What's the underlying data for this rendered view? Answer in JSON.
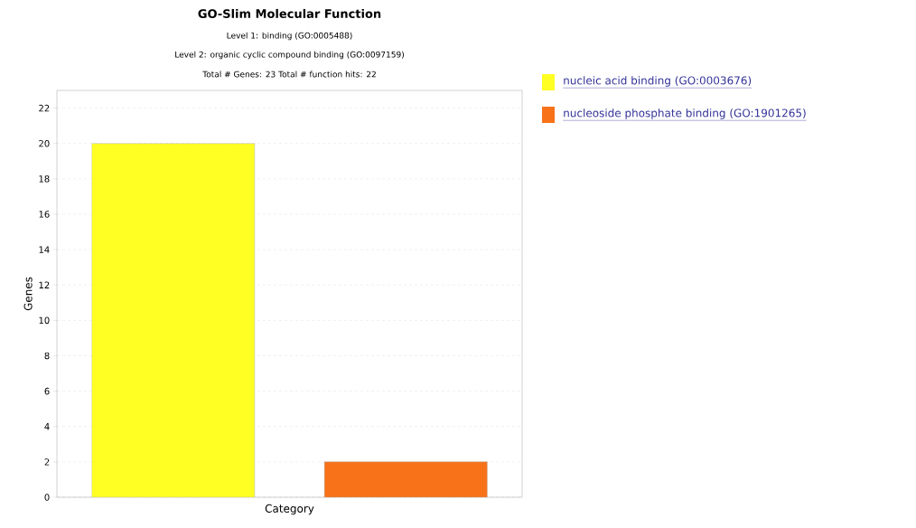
{
  "chart_data": {
    "type": "bar",
    "title": "GO-Slim Molecular Function",
    "subtitle": "Level 1: binding (GO:0005488)",
    "annotations": [
      "Level 2: organic cyclic compound binding (GO:0097159)",
      "Total # Genes: 23    Total # function hits: 22"
    ],
    "xlabel": "Category",
    "ylabel": "Genes",
    "categories": [
      null,
      null
    ],
    "series": [
      {
        "name": "nucleic acid binding (GO:0003676)",
        "color": "#ffff24",
        "values": [
          20,
          null
        ]
      },
      {
        "name": "nucleoside phosphate binding (GO:1901265)",
        "color": "#f8721a",
        "values": [
          null,
          2
        ]
      }
    ],
    "ylim": [
      0,
      23
    ],
    "yticks": [
      0,
      2,
      4,
      6,
      8,
      10,
      12,
      14,
      16,
      18,
      20,
      22
    ],
    "grid": "y",
    "legend": "right"
  }
}
